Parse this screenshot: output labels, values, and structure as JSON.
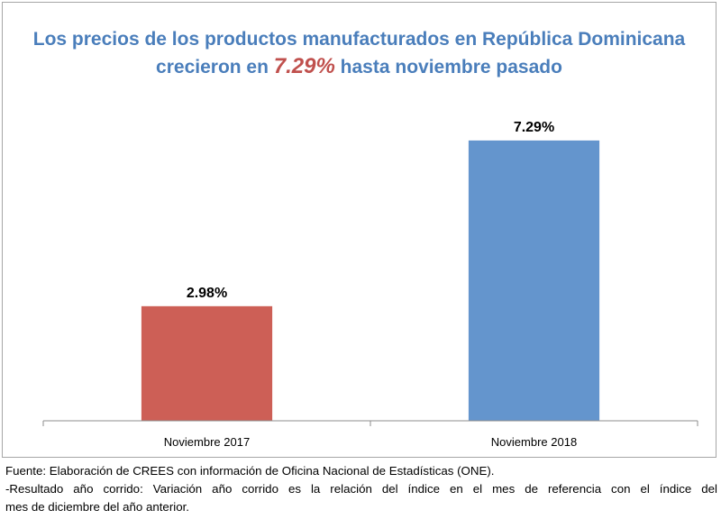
{
  "chart_data": {
    "type": "bar",
    "title": {
      "line1": "Los precios de los productos manufacturados en República Dominicana",
      "line2_prefix": "crecieron en ",
      "line2_highlight": "7.29%",
      "line2_suffix": " hasta noviembre pasado"
    },
    "categories": [
      "Noviembre 2017",
      "Noviembre 2018"
    ],
    "values": [
      2.98,
      7.29
    ],
    "data_labels": [
      "2.98%",
      "7.29%"
    ],
    "bar_colors": [
      "#cd5f56",
      "#6495cd"
    ],
    "ylim": [
      0,
      8.6
    ],
    "grid": false,
    "legend": "none",
    "xlabel": "",
    "ylabel": ""
  },
  "footnotes": {
    "source": "Fuente: Elaboración de CREES con información de Oficina Nacional de Estadísticas (ONE).",
    "note_line1": "-Resultado año corrido: Variación año corrido es la relación del índice en el mes de referencia con el índice del",
    "note_line2": "mes de diciembre del año anterior."
  },
  "colors": {
    "title": "#4a7ebb",
    "highlight": "#c0504d",
    "axis": "#8c8c8c",
    "frame_border": "#a6a6a6"
  }
}
